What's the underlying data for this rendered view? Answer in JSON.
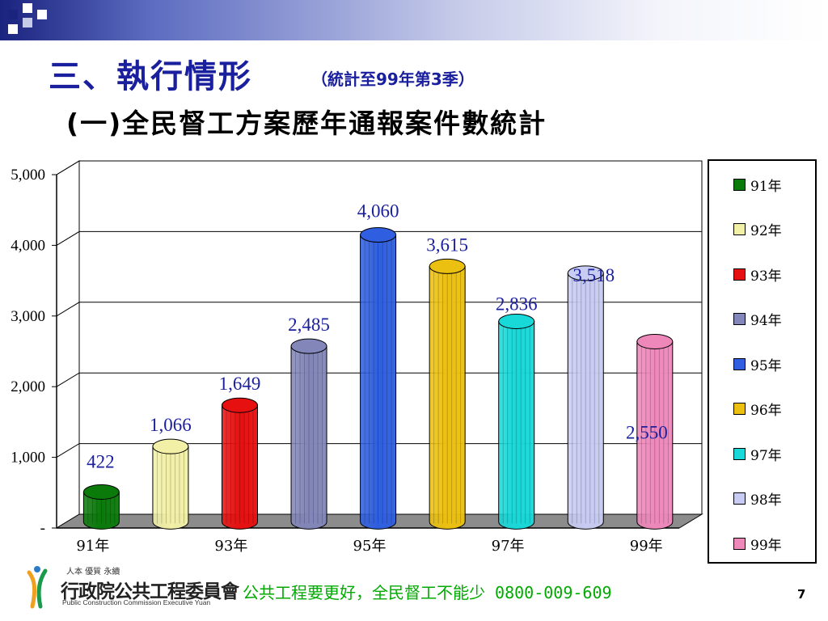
{
  "slide": {
    "title": "三、執行情形",
    "title_note": "（統計至99年第3季）",
    "subtitle": "(一)全民督工方案歷年通報案件數統計",
    "footer_text": "公共工程要更好，全民督工不能少 0800-009-609",
    "page_number": "7"
  },
  "logo": {
    "tagline": "人本 優質 永續",
    "name": "行政院公共工程委員會",
    "english": "Public Construction Commission Executive Yuan"
  },
  "chart_data": {
    "type": "bar",
    "title": "",
    "xlabel": "",
    "ylabel": "",
    "ylim": [
      0,
      5000
    ],
    "y_ticks": [
      0,
      1000,
      2000,
      3000,
      4000,
      5000
    ],
    "y_tick_labels": [
      "-",
      "1,000",
      "2,000",
      "3,000",
      "4,000",
      "5,000"
    ],
    "x_tick_labels": [
      "91年",
      "93年",
      "95年",
      "97年",
      "99年"
    ],
    "categories": [
      "91年",
      "92年",
      "93年",
      "94年",
      "95年",
      "96年",
      "97年",
      "98年",
      "99年"
    ],
    "values": [
      422,
      1066,
      1649,
      2485,
      4060,
      3615,
      2836,
      3518,
      2550
    ],
    "value_labels": [
      "422",
      "1,066",
      "1,649",
      "2,485",
      "4,060",
      "3,615",
      "2,836",
      "3,518",
      "2,550"
    ],
    "colors": [
      "#0a7a0a",
      "#f2f0a6",
      "#e61010",
      "#8286b8",
      "#2f5fe0",
      "#ecc010",
      "#18d8d8",
      "#c8cbf2",
      "#ee88bb"
    ],
    "legend": "right",
    "grid": true
  }
}
